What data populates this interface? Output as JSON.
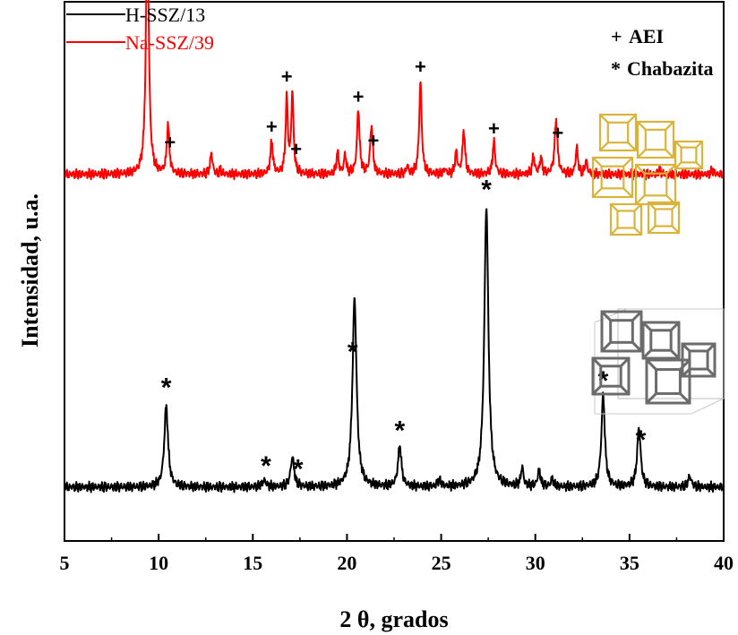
{
  "chart_data": {
    "type": "line",
    "xlabel": "2 θ, grados",
    "ylabel": "Intensidad, u.a.",
    "xlim": [
      5,
      40
    ],
    "x_ticks": [
      "5",
      "10",
      "15",
      "20",
      "25",
      "30",
      "35",
      "40"
    ],
    "y_ticks_labeled": false,
    "grid": false,
    "legend_position": "top-left",
    "marker_legend_position": "top-right",
    "series": [
      {
        "name": "H-SSZ/13",
        "color": "#000000",
        "baseline": 0.1,
        "peaks": [
          {
            "x": 10.4,
            "h": 0.15,
            "w": 0.12
          },
          {
            "x": 15.6,
            "h": 0.012,
            "w": 0.12
          },
          {
            "x": 17.1,
            "h": 0.055,
            "w": 0.11
          },
          {
            "x": 20.4,
            "h": 0.35,
            "w": 0.13
          },
          {
            "x": 22.8,
            "h": 0.075,
            "w": 0.11
          },
          {
            "x": 24.9,
            "h": 0.012,
            "w": 0.1
          },
          {
            "x": 27.4,
            "h": 0.52,
            "w": 0.13
          },
          {
            "x": 29.3,
            "h": 0.035,
            "w": 0.08
          },
          {
            "x": 30.2,
            "h": 0.03,
            "w": 0.09
          },
          {
            "x": 30.9,
            "h": 0.015,
            "w": 0.08
          },
          {
            "x": 33.6,
            "h": 0.17,
            "w": 0.11
          },
          {
            "x": 35.5,
            "h": 0.11,
            "w": 0.11
          },
          {
            "x": 38.2,
            "h": 0.02,
            "w": 0.1
          }
        ]
      },
      {
        "name": "Na-SSZ/39",
        "color": "#ff0000",
        "baseline": 0.68,
        "peaks": [
          {
            "x": 9.4,
            "h": 0.47,
            "w": 0.09
          },
          {
            "x": 10.5,
            "h": 0.09,
            "w": 0.08
          },
          {
            "x": 12.8,
            "h": 0.04,
            "w": 0.07
          },
          {
            "x": 13.3,
            "h": 0.008,
            "w": 0.06
          },
          {
            "x": 16.0,
            "h": 0.06,
            "w": 0.08
          },
          {
            "x": 16.8,
            "h": 0.14,
            "w": 0.07
          },
          {
            "x": 17.1,
            "h": 0.15,
            "w": 0.07
          },
          {
            "x": 19.5,
            "h": 0.04,
            "w": 0.07
          },
          {
            "x": 19.9,
            "h": 0.035,
            "w": 0.07
          },
          {
            "x": 20.6,
            "h": 0.12,
            "w": 0.08
          },
          {
            "x": 21.3,
            "h": 0.09,
            "w": 0.08
          },
          {
            "x": 23.2,
            "h": 0.015,
            "w": 0.06
          },
          {
            "x": 23.9,
            "h": 0.17,
            "w": 0.08
          },
          {
            "x": 25.2,
            "h": 0.01,
            "w": 0.06
          },
          {
            "x": 25.8,
            "h": 0.04,
            "w": 0.07
          },
          {
            "x": 26.2,
            "h": 0.08,
            "w": 0.08
          },
          {
            "x": 27.8,
            "h": 0.06,
            "w": 0.08
          },
          {
            "x": 29.9,
            "h": 0.035,
            "w": 0.07
          },
          {
            "x": 30.3,
            "h": 0.03,
            "w": 0.07
          },
          {
            "x": 31.1,
            "h": 0.1,
            "w": 0.09
          },
          {
            "x": 32.2,
            "h": 0.05,
            "w": 0.07
          },
          {
            "x": 32.7,
            "h": 0.025,
            "w": 0.07
          },
          {
            "x": 36.6,
            "h": 0.008,
            "w": 0.08
          },
          {
            "x": 39.4,
            "h": 0.008,
            "w": 0.08
          }
        ]
      }
    ],
    "marker_legend": [
      {
        "symbol": "+",
        "label": "AEI"
      },
      {
        "symbol": "*",
        "label": "Chabazita"
      }
    ],
    "annotations": [
      {
        "symbol": "+",
        "x": 9.4,
        "series": "Na-SSZ/39"
      },
      {
        "symbol": "+",
        "x": 10.6,
        "series": "Na-SSZ/39"
      },
      {
        "symbol": "+",
        "x": 16.0,
        "series": "Na-SSZ/39"
      },
      {
        "symbol": "+",
        "x": 16.8,
        "series": "Na-SSZ/39"
      },
      {
        "symbol": "+",
        "x": 17.3,
        "series": "Na-SSZ/39"
      },
      {
        "symbol": "+",
        "x": 20.6,
        "series": "Na-SSZ/39"
      },
      {
        "symbol": "+",
        "x": 21.4,
        "series": "Na-SSZ/39"
      },
      {
        "symbol": "+",
        "x": 23.9,
        "series": "Na-SSZ/39"
      },
      {
        "symbol": "+",
        "x": 27.8,
        "series": "Na-SSZ/39"
      },
      {
        "symbol": "+",
        "x": 31.2,
        "series": "Na-SSZ/39"
      },
      {
        "symbol": "*",
        "x": 10.4,
        "series": "H-SSZ/13"
      },
      {
        "symbol": "*",
        "x": 15.7,
        "series": "H-SSZ/13"
      },
      {
        "symbol": "*",
        "x": 17.4,
        "series": "H-SSZ/13"
      },
      {
        "symbol": "*",
        "x": 20.3,
        "series": "H-SSZ/13"
      },
      {
        "symbol": "*",
        "x": 22.8,
        "series": "H-SSZ/13"
      },
      {
        "symbol": "*",
        "x": 27.4,
        "series": "H-SSZ/13"
      },
      {
        "symbol": "*",
        "x": 33.6,
        "series": "H-SSZ/13"
      },
      {
        "symbol": "*",
        "x": 35.6,
        "series": "H-SSZ/13"
      }
    ],
    "structure_images": [
      {
        "name": "aei-framework-structure",
        "color": "#d9b33a"
      },
      {
        "name": "chabazite-framework-structure",
        "color": "#6b6b6b"
      }
    ]
  }
}
